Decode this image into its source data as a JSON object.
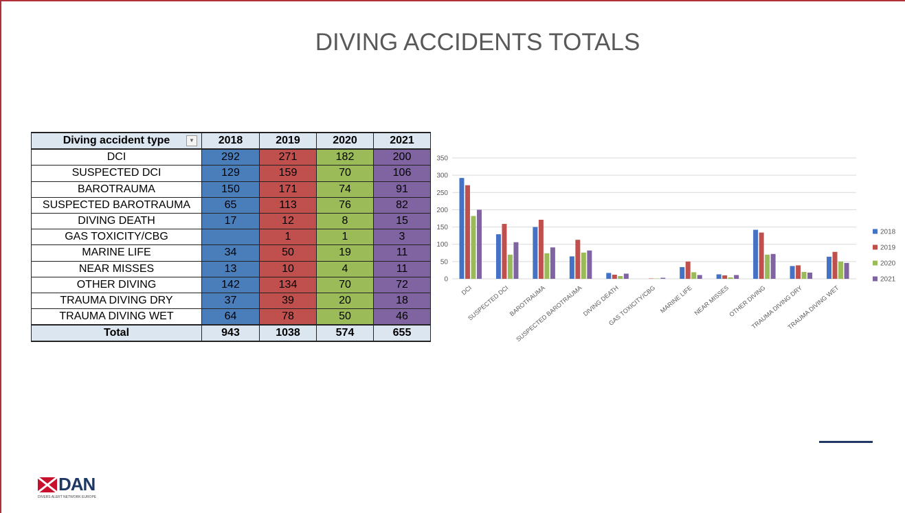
{
  "title": "DIVING ACCIDENTS TOTALS",
  "table": {
    "header": [
      "Diving accident type",
      "2018",
      "2019",
      "2020",
      "2021"
    ],
    "rows": [
      [
        "DCI",
        292,
        271,
        182,
        200
      ],
      [
        "SUSPECTED DCI",
        129,
        159,
        70,
        106
      ],
      [
        "BAROTRAUMA",
        150,
        171,
        74,
        91
      ],
      [
        "SUSPECTED BAROTRAUMA",
        65,
        113,
        76,
        82
      ],
      [
        "DIVING DEATH",
        17,
        12,
        8,
        15
      ],
      [
        "GAS TOXICITY/CBG",
        null,
        1,
        1,
        3
      ],
      [
        "MARINE LIFE",
        34,
        50,
        19,
        11
      ],
      [
        "NEAR MISSES",
        13,
        10,
        4,
        11
      ],
      [
        "OTHER DIVING",
        142,
        134,
        70,
        72
      ],
      [
        "TRAUMA DIVING DRY",
        37,
        39,
        20,
        18
      ],
      [
        "TRAUMA DIVING WET",
        64,
        78,
        50,
        46
      ]
    ],
    "total": [
      "Total",
      943,
      1038,
      574,
      655
    ],
    "column_colors": [
      "#ffffff",
      "#4a7ebb",
      "#c0504d",
      "#9bbb59",
      "#8064a2"
    ]
  },
  "chart_data": {
    "type": "bar",
    "categories": [
      "DCI",
      "SUSPECTED DCI",
      "BAROTRAUMA",
      "SUSPECTED BAROTRAUMA",
      "DIVING DEATH",
      "GAS TOXICITY/CBG",
      "MARINE LIFE",
      "NEAR MISSES",
      "OTHER DIVING",
      "TRAUMA DIVING DRY",
      "TRAUMA DIVING WET"
    ],
    "series": [
      {
        "name": "2018",
        "color": "#4472c4",
        "values": [
          292,
          129,
          150,
          65,
          17,
          null,
          34,
          13,
          142,
          37,
          64
        ]
      },
      {
        "name": "2019",
        "color": "#c0504d",
        "values": [
          271,
          159,
          171,
          113,
          12,
          1,
          50,
          10,
          134,
          39,
          78
        ]
      },
      {
        "name": "2020",
        "color": "#9bbb59",
        "values": [
          182,
          70,
          74,
          76,
          8,
          1,
          19,
          4,
          70,
          20,
          50
        ]
      },
      {
        "name": "2021",
        "color": "#8064a2",
        "values": [
          200,
          106,
          91,
          82,
          15,
          3,
          11,
          11,
          72,
          18,
          46
        ]
      }
    ],
    "ylim": [
      0,
      350
    ],
    "yticks": [
      0,
      50,
      100,
      150,
      200,
      250,
      300,
      350
    ],
    "grid": true,
    "legend": "right"
  },
  "logo": {
    "name": "DAN",
    "tagline": "DIVERS ALERT NETWORK EUROPE"
  }
}
